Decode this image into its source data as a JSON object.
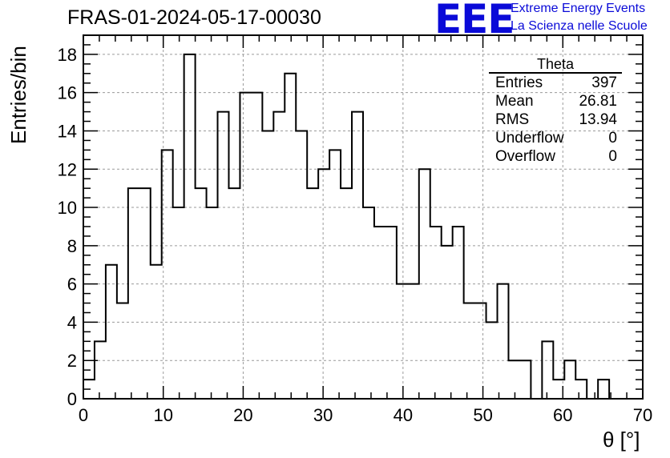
{
  "header": {
    "run_title": "FRAS-01-2024-05-17-00030",
    "logo_text": "EEE",
    "logo_line1": "Extreme Energy Events",
    "logo_line2": "La Scienza nelle Scuole",
    "logo_color": "#0a0ad8"
  },
  "stats_box": {
    "title": "Theta",
    "rows": [
      {
        "label": "Entries",
        "value": "397"
      },
      {
        "label": "Mean",
        "value": "26.81"
      },
      {
        "label": "RMS",
        "value": "13.94"
      },
      {
        "label": "Underflow",
        "value": "0"
      },
      {
        "label": "Overflow",
        "value": "0"
      }
    ]
  },
  "chart_data": {
    "type": "bar",
    "histogram_style": "step",
    "xlabel": "θ [°]",
    "ylabel": "Entries/bin",
    "xlim": [
      0,
      70
    ],
    "ylim": [
      0,
      19
    ],
    "grid": true,
    "bin_width": 1.4,
    "x_ticks": [
      0,
      10,
      20,
      30,
      40,
      50,
      60,
      70
    ],
    "y_ticks": [
      0,
      2,
      4,
      6,
      8,
      10,
      12,
      14,
      16,
      18
    ],
    "values": [
      1,
      3,
      7,
      5,
      11,
      11,
      7,
      13,
      10,
      18,
      11,
      10,
      15,
      11,
      16,
      16,
      14,
      15,
      17,
      14,
      11,
      12,
      13,
      11,
      15,
      10,
      9,
      9,
      6,
      6,
      12,
      9,
      8,
      9,
      5,
      5,
      4,
      6,
      2,
      2,
      0,
      3,
      1,
      2,
      1,
      0,
      1,
      0,
      0,
      0
    ]
  }
}
